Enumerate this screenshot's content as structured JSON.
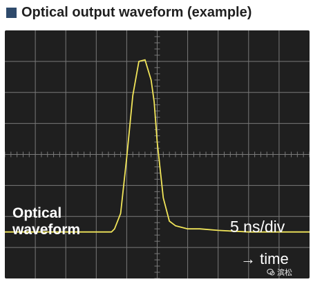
{
  "header": {
    "title": "Optical output waveform (example)",
    "square_color": "#2e4a6b"
  },
  "labels": {
    "waveform_line1": "Optical",
    "waveform_line2": "waveform",
    "timescale": "5 ns/div",
    "time_axis": "→ time"
  },
  "watermark": {
    "icon": "wechat-icon",
    "text": "滨松"
  },
  "colors": {
    "screen_background": "#1f1f1f",
    "grid": "#7a7a7a",
    "trace": "#f2e65a"
  },
  "chart_data": {
    "type": "line",
    "title": "Optical output waveform (example)",
    "xlabel": "time",
    "x_scale": "5 ns/div",
    "grid": true,
    "divisions": {
      "x": 10,
      "y": 8
    },
    "xlim": [
      0,
      50
    ],
    "ylim": [
      0,
      8
    ],
    "series": [
      {
        "name": "Optical waveform",
        "x": [
          0,
          4,
          8,
          12,
          16,
          17.5,
          18,
          19,
          20,
          21,
          22,
          23,
          24,
          24.5,
          25,
          26,
          27,
          28,
          29,
          30,
          32,
          35,
          40,
          45,
          50
        ],
        "y": [
          1.5,
          1.5,
          1.5,
          1.5,
          1.5,
          1.5,
          1.6,
          2.1,
          3.9,
          5.9,
          7.0,
          7.05,
          6.4,
          5.7,
          4.4,
          2.6,
          1.85,
          1.7,
          1.65,
          1.6,
          1.6,
          1.55,
          1.5,
          1.5,
          1.5
        ]
      }
    ]
  }
}
